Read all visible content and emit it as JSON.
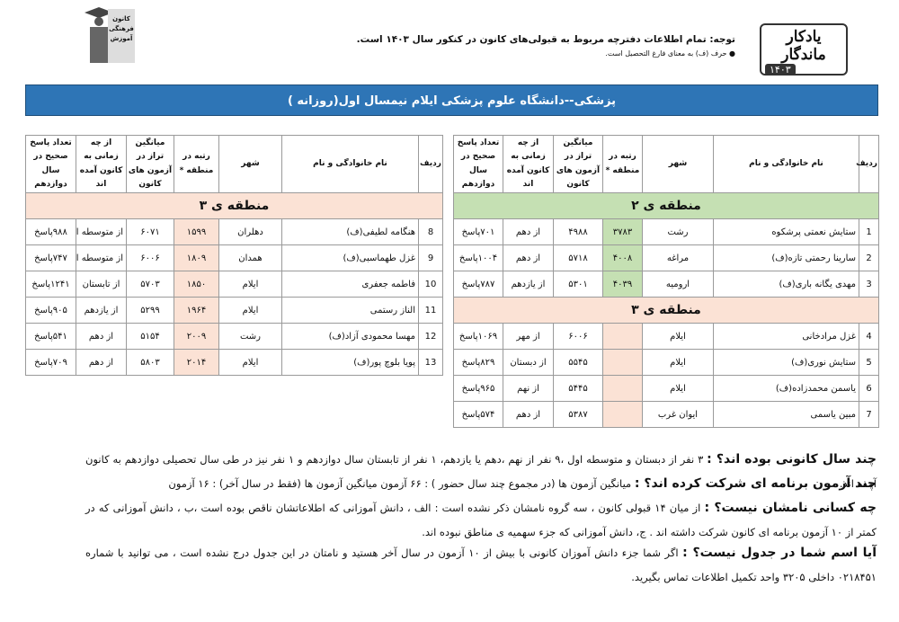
{
  "header": {
    "logo_title": "یادکار ماندگار",
    "logo_year": "۱۴۰۳",
    "left_logo": "کانون فرهنگی آموزش",
    "notice": "توجه: تمام اطلاعات دفترچه مربوط به قبولی‌های کانون در کنکور سال ۱۴۰۳ است.",
    "note": "● حرف (ف) به معنای فارغ التحصیل است."
  },
  "title": "پزشکی--دانشگاه علوم پزشکی ایلام نیمسال اول(روزانه )",
  "table_headers": [
    "ردیف",
    "نام خانوادگی و نام",
    "شهر",
    "رتبه در منطقه *",
    "میانگین تراز در آزمون های کانون",
    "از چه زمانی به کانون آمده اند",
    "تعداد پاسخ صحیح در سال دوازدهم"
  ],
  "tables": [
    {
      "sections": [
        {
          "zone": "منطقه ی ۲",
          "rows": [
            [
              "1",
              "ستایش نعمتی پرشکوه",
              "رشت",
              "۳۷۸۳",
              "۴۹۸۸",
              "از دهم",
              "۷۰۱پاسخ"
            ],
            [
              "2",
              "سارینا رحمتی تازه(ف)",
              "مراغه",
              "۴۰۰۸",
              "۵۷۱۸",
              "از دهم",
              "۱۰۰۴پاسخ"
            ],
            [
              "3",
              "مهدی یگانه باری(ف)",
              "ارومیه",
              "۴۰۳۹",
              "۵۳۰۱",
              "از یازدهم",
              "۷۸۷پاسخ"
            ]
          ]
        },
        {
          "zone": "منطقه ی ۳",
          "rows": [
            [
              "4",
              "غزل مرادخانی",
              "ایلام",
              null,
              "۶۰۰۶",
              "از مهر",
              "۱۰۶۹پاسخ"
            ],
            [
              "5",
              "ستایش نوری(ف)",
              "ایلام",
              null,
              "۵۵۴۵",
              "از دبستان",
              "۸۲۹پاسخ"
            ],
            [
              "6",
              "یاسمن محمدزاده(ف)",
              "ایلام",
              null,
              "۵۴۴۵",
              "از نهم",
              "۹۶۵پاسخ"
            ],
            [
              "7",
              "مبین یاسمی",
              "ایوان غرب",
              null,
              "۵۳۸۷",
              "از دهم",
              "۵۷۴پاسخ"
            ]
          ]
        }
      ]
    },
    {
      "sections": [
        {
          "zone": "منطقه ی ۳",
          "rows": [
            [
              "8",
              "هنگامه لطیفی(ف)",
              "دهلران",
              "۱۵۹۹",
              "۶۰۷۱",
              "از متوسطه اول",
              "۹۸۸پاسخ"
            ],
            [
              "9",
              "غزل طهماسبی(ف)",
              "همدان",
              "۱۸۰۹",
              "۶۰۰۶",
              "از متوسطه اول",
              "۷۴۷پاسخ"
            ],
            [
              "10",
              "فاطمه جعفری",
              "ایلام",
              "۱۸۵۰",
              "۵۷۰۳",
              "از تابستان",
              "۱۲۴۱پاسخ"
            ],
            [
              "11",
              "الناز رستمی",
              "ایلام",
              "۱۹۶۴",
              "۵۲۹۹",
              "از یازدهم",
              "۹۰۵پاسخ"
            ],
            [
              "12",
              "مهسا محمودی آزاد(ف)",
              "رشت",
              "۲۰۰۹",
              "۵۱۵۴",
              "از دهم",
              "۵۴۱پاسخ"
            ],
            [
              "13",
              "پویا بلوچ پور(ف)",
              "ایلام",
              "۲۰۱۴",
              "۵۸۰۳",
              "از دهم",
              "۷۰۹پاسخ"
            ]
          ]
        }
      ]
    }
  ],
  "faq": [
    {
      "q": "چند سال کانونی بوده اند؟ :",
      "a": "۳ نفر از دبستان و متوسطه اول ،۹ نفر از نهم ،دهم یا یازدهم، ۱ نفر از تابستان سال دوازدهم و ۱ نفر نیز در طی سال تحصیلی دوازدهم به کانون آمده اند."
    },
    {
      "q": "چند آزمون برنامه ای شرکت کرده اند؟ :",
      "a": "میانگین آزمون ها (در مجموع چند سال حضور ) : ۶۶ آزمون      میانگین آزمون ها (فقط در سال آخر) : ۱۶ آزمون"
    },
    {
      "q": "چه کسانی نامشان نیست؟ :",
      "a": "از میان ۱۴ قبولی کانون ، سه گروه نامشان ذکر نشده است : الف ، دانش آموزانی که اطلاعاتشان ناقص بوده است ،ب ، دانش آموزانی که در کمتر از ۱۰ آزمون برنامه ای کانون شرکت داشته اند . ج، دانش آموزانی که جزء سهمیه ی مناطق نبوده اند."
    },
    {
      "q": "آیا اسم شما در جدول نیست؟ :",
      "a": "اگر شما جزء دانش آموزان کانونی با بیش از ۱۰ آزمون در سال آخر هستید و نامتان در این جدول درج نشده است ، می توانید با شماره ۰۲۱۸۴۵۱ داخلی ۳۲۰۵ واحد تکمیل اطلاعات تماس بگیرید."
    }
  ]
}
